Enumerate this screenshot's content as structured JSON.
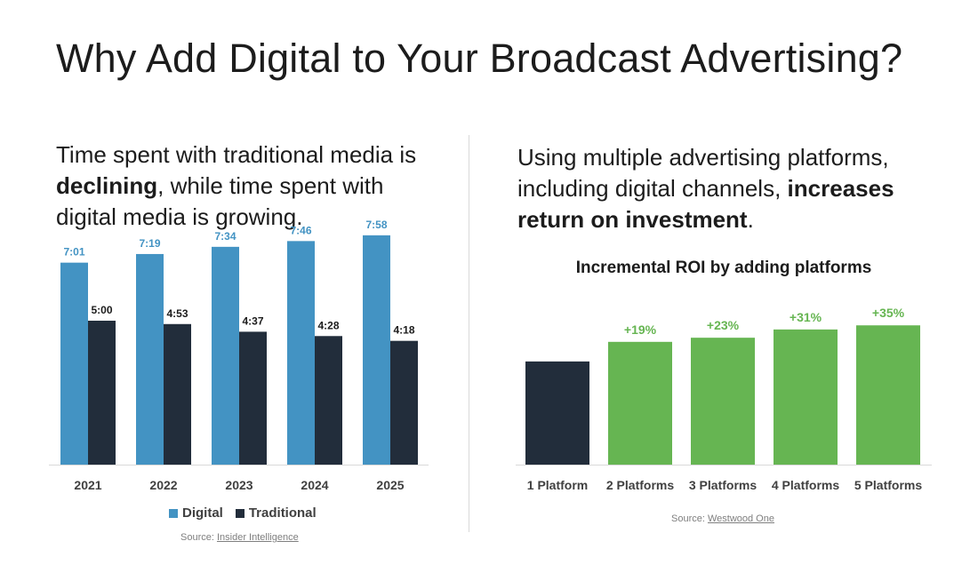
{
  "title": "Why Add Digital to Your Broadcast Advertising?",
  "left_blurb": {
    "part1": "Time spent with traditional media is ",
    "bold": "declining",
    "part2": ", while time spent with digital media is growing."
  },
  "right_blurb": {
    "part1": "Using multiple advertising platforms, including digital channels, ",
    "bold": "increases return on investment",
    "part2": "."
  },
  "left_source": {
    "prefix": "Source: ",
    "link": "Insider Intelligence"
  },
  "right_source": {
    "prefix": "Source: ",
    "link": "Westwood One"
  },
  "colors": {
    "digital": "#4393c3",
    "traditional": "#222d3b",
    "roi_base": "#222d3b",
    "roi_increment": "#66b552",
    "axis": "#d9d9d9"
  },
  "chart_data": [
    {
      "type": "bar",
      "title": "",
      "categories": [
        "2021",
        "2022",
        "2023",
        "2024",
        "2025"
      ],
      "series": [
        {
          "name": "Digital",
          "values": [
            421,
            439,
            454,
            466,
            478
          ],
          "labels": [
            "7:01",
            "7:19",
            "7:34",
            "7:46",
            "7:58"
          ]
        },
        {
          "name": "Traditional",
          "values": [
            300,
            293,
            277,
            268,
            258
          ],
          "labels": [
            "5:00",
            "4:53",
            "4:37",
            "4:28",
            "4:18"
          ]
        }
      ],
      "value_unit": "minutes per day",
      "ylim": [
        0,
        500
      ],
      "grid": false,
      "legend": "bottom"
    },
    {
      "type": "bar",
      "title": "Incremental ROI by adding platforms",
      "categories": [
        "1 Platform",
        "2 Platforms",
        "3 Platforms",
        "4 Platforms",
        "5 Platforms"
      ],
      "values": [
        100,
        119,
        123,
        131,
        135
      ],
      "labels": [
        "",
        "+19%",
        "+23%",
        "+31%",
        "+35%"
      ],
      "ylim": [
        0,
        155
      ],
      "grid": false,
      "legend": "none"
    }
  ]
}
